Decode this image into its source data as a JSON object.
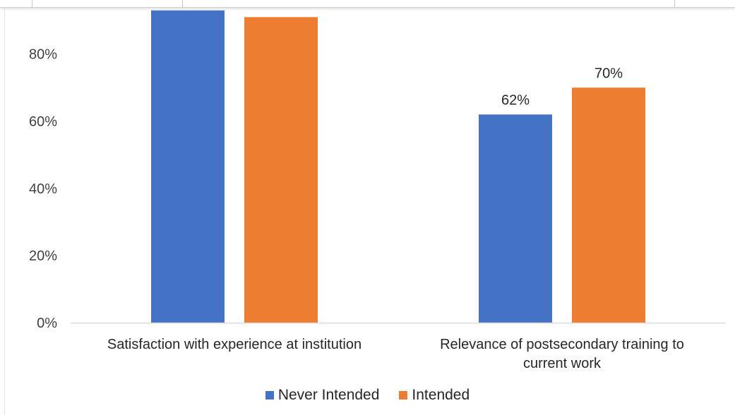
{
  "colors": {
    "never_intended": "#4472C4",
    "intended": "#ED7D31",
    "axis": "#d9d9d9",
    "text": "#262626"
  },
  "chart_data": {
    "type": "bar",
    "categories": [
      [
        "Satisfaction with experience at institution"
      ],
      [
        "Relevance of postsecondary training to",
        "current work"
      ]
    ],
    "series": [
      {
        "name": "Never Intended",
        "values": [
          93,
          62
        ],
        "data_labels": [
          null,
          "62%"
        ]
      },
      {
        "name": "Intended",
        "values": [
          91,
          70
        ],
        "data_labels": [
          null,
          "70%"
        ]
      }
    ],
    "ylim": [
      0,
      94
    ],
    "yticks": [
      0,
      20,
      40,
      60,
      80
    ],
    "ytick_labels": [
      "0%",
      "20%",
      "40%",
      "60%",
      "80%"
    ],
    "grid": false,
    "legend_position": "bottom"
  },
  "legend": {
    "items": [
      "Never Intended",
      "Intended"
    ]
  }
}
